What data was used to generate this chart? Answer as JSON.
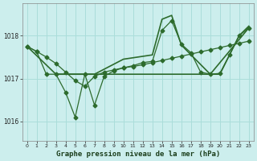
{
  "title": "Graphe pression niveau de la mer (hPa)",
  "bg_color": "#cceeed",
  "grid_color": "#aaddda",
  "line_color": "#2d6b2d",
  "ylim": [
    1015.55,
    1018.75
  ],
  "yticks": [
    1016,
    1017,
    1018
  ],
  "xlim": [
    -0.5,
    23.5
  ],
  "xticks": [
    0,
    1,
    2,
    3,
    4,
    5,
    6,
    7,
    8,
    9,
    10,
    11,
    12,
    13,
    14,
    15,
    16,
    17,
    18,
    19,
    20,
    21,
    22,
    23
  ],
  "s1_x": [
    0,
    1,
    2,
    3,
    4,
    5,
    6,
    7,
    8,
    9,
    10,
    11,
    12,
    13,
    14,
    15,
    16,
    17,
    18,
    19,
    20,
    21,
    22,
    23
  ],
  "s1_y": [
    1017.75,
    1017.63,
    1017.5,
    1017.35,
    1017.15,
    1016.95,
    1016.82,
    1017.05,
    1017.15,
    1017.2,
    1017.25,
    1017.28,
    1017.32,
    1017.37,
    1017.42,
    1017.47,
    1017.52,
    1017.57,
    1017.62,
    1017.67,
    1017.72,
    1017.77,
    1017.82,
    1017.87
  ],
  "s2_x": [
    0,
    1,
    2,
    3,
    4,
    5,
    6,
    7,
    8,
    9,
    10,
    11,
    12,
    13,
    14,
    15,
    16,
    17,
    18,
    19,
    20,
    21,
    22,
    23
  ],
  "s2_y": [
    1017.75,
    1017.63,
    1017.1,
    1017.1,
    1016.68,
    1016.1,
    1017.1,
    1016.38,
    1017.05,
    1017.18,
    1017.25,
    1017.3,
    1017.37,
    1017.4,
    1018.12,
    1018.35,
    1017.8,
    1017.6,
    1017.15,
    1017.1,
    1017.12,
    1017.55,
    1018.0,
    1018.18
  ],
  "s3_x": [
    0,
    3,
    7,
    10,
    14,
    19,
    23
  ],
  "s3_y": [
    1017.75,
    1017.1,
    1017.1,
    1017.1,
    1017.1,
    1017.1,
    1018.18
  ],
  "s4_x": [
    3,
    7,
    10,
    13,
    14,
    15,
    16,
    19,
    20,
    21,
    22,
    23
  ],
  "s4_y": [
    1017.1,
    1017.1,
    1017.45,
    1017.55,
    1018.38,
    1018.47,
    1017.78,
    1017.1,
    1017.1,
    1017.55,
    1018.0,
    1018.22
  ]
}
